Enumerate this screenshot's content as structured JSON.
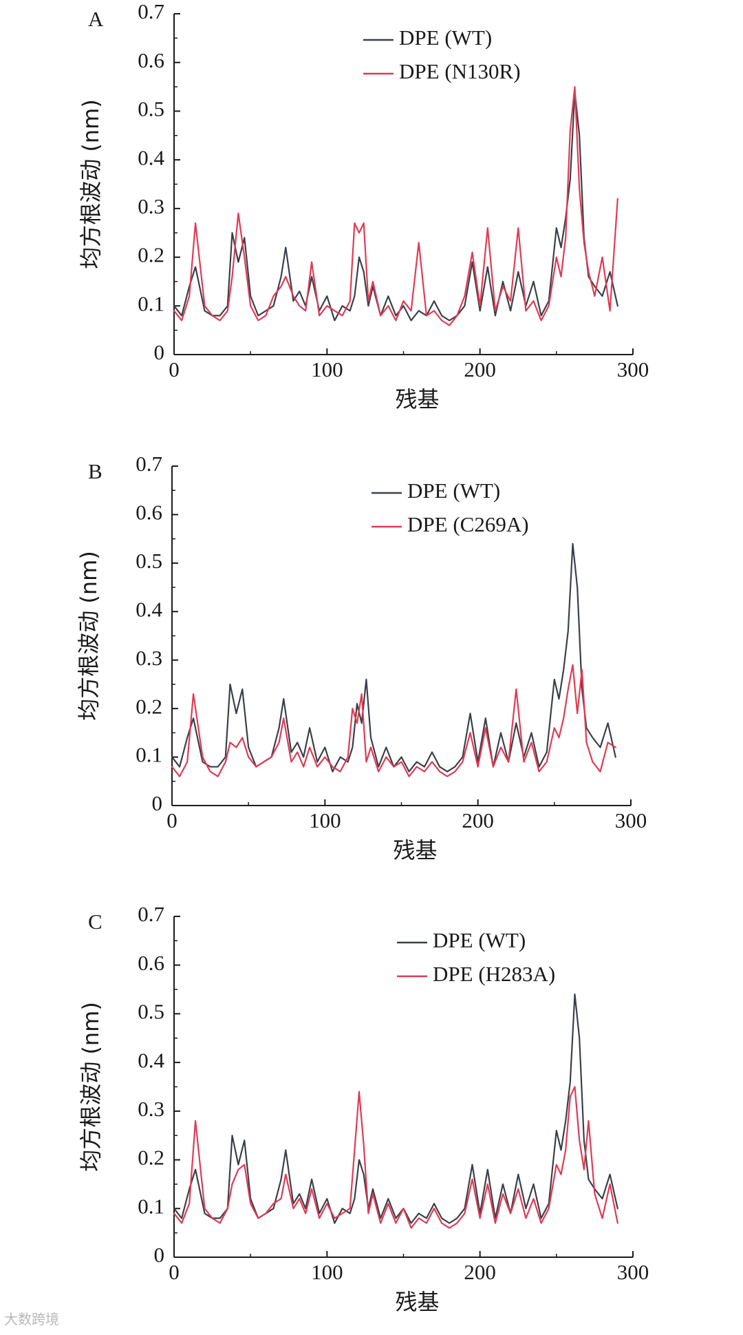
{
  "colors": {
    "wt": "#3a4048",
    "mut": "#e03a55",
    "axis": "#1a1a1a"
  },
  "watermark": "大数跨境",
  "chart_data": [
    {
      "type": "line",
      "panel": "A",
      "xlabel": "残基",
      "ylabel": "均方根波动 (nm)",
      "xlim": [
        0,
        300
      ],
      "ylim": [
        0,
        0.7
      ],
      "xticks": [
        "0",
        "100",
        "200",
        "300"
      ],
      "yticks": [
        "0",
        "0.1",
        "0.2",
        "0.3",
        "0.4",
        "0.5",
        "0.6",
        "0.7"
      ],
      "legend_position": "top-right",
      "series": [
        {
          "name": "DPE (WT)",
          "key": "wt"
        },
        {
          "name": "DPE (N130R)",
          "key": "mut"
        }
      ],
      "points": {
        "x": [
          0,
          5,
          10,
          14,
          20,
          25,
          30,
          35,
          38,
          42,
          46,
          50,
          55,
          60,
          65,
          70,
          73,
          78,
          82,
          86,
          90,
          95,
          100,
          105,
          110,
          115,
          118,
          121,
          124,
          127,
          130,
          135,
          140,
          145,
          150,
          155,
          160,
          165,
          170,
          175,
          180,
          185,
          190,
          195,
          200,
          205,
          210,
          215,
          220,
          225,
          230,
          235,
          240,
          245,
          250,
          253,
          256,
          259,
          262,
          265,
          268,
          271,
          275,
          280,
          285,
          290
        ],
        "wt": [
          0.1,
          0.08,
          0.14,
          0.18,
          0.09,
          0.08,
          0.08,
          0.1,
          0.25,
          0.19,
          0.24,
          0.12,
          0.08,
          0.09,
          0.1,
          0.16,
          0.22,
          0.11,
          0.13,
          0.1,
          0.16,
          0.09,
          0.12,
          0.07,
          0.1,
          0.09,
          0.12,
          0.2,
          0.17,
          0.1,
          0.14,
          0.08,
          0.12,
          0.08,
          0.1,
          0.07,
          0.09,
          0.08,
          0.11,
          0.08,
          0.07,
          0.08,
          0.1,
          0.19,
          0.09,
          0.18,
          0.08,
          0.15,
          0.09,
          0.17,
          0.1,
          0.15,
          0.08,
          0.11,
          0.26,
          0.22,
          0.28,
          0.36,
          0.54,
          0.45,
          0.24,
          0.16,
          0.14,
          0.12,
          0.17,
          0.1
        ],
        "mut": [
          0.09,
          0.07,
          0.12,
          0.27,
          0.1,
          0.08,
          0.07,
          0.09,
          0.16,
          0.29,
          0.2,
          0.1,
          0.07,
          0.08,
          0.12,
          0.14,
          0.16,
          0.12,
          0.1,
          0.09,
          0.19,
          0.08,
          0.1,
          0.09,
          0.08,
          0.11,
          0.27,
          0.25,
          0.27,
          0.11,
          0.15,
          0.08,
          0.1,
          0.07,
          0.11,
          0.09,
          0.23,
          0.08,
          0.09,
          0.07,
          0.06,
          0.08,
          0.12,
          0.21,
          0.1,
          0.26,
          0.09,
          0.14,
          0.11,
          0.26,
          0.09,
          0.11,
          0.07,
          0.1,
          0.2,
          0.16,
          0.24,
          0.46,
          0.55,
          0.34,
          0.23,
          0.17,
          0.12,
          0.2,
          0.09,
          0.32
        ]
      }
    },
    {
      "type": "line",
      "panel": "B",
      "xlabel": "残基",
      "ylabel": "均方根波动 (nm)",
      "xlim": [
        0,
        300
      ],
      "ylim": [
        0,
        0.7
      ],
      "xticks": [
        "0",
        "100",
        "200",
        "300"
      ],
      "yticks": [
        "0",
        "0.1",
        "0.2",
        "0.3",
        "0.4",
        "0.5",
        "0.6",
        "0.7"
      ],
      "legend_position": "top-right",
      "series": [
        {
          "name": "DPE (WT)",
          "key": "wt"
        },
        {
          "name": "DPE (C269A)",
          "key": "mut"
        }
      ],
      "points": {
        "x": [
          0,
          5,
          10,
          14,
          20,
          25,
          30,
          35,
          38,
          42,
          46,
          50,
          55,
          60,
          65,
          70,
          73,
          78,
          82,
          86,
          90,
          95,
          100,
          105,
          110,
          115,
          118,
          121,
          124,
          127,
          130,
          135,
          140,
          145,
          150,
          155,
          160,
          165,
          170,
          175,
          180,
          185,
          190,
          195,
          200,
          205,
          210,
          215,
          220,
          225,
          230,
          235,
          240,
          245,
          250,
          253,
          256,
          259,
          262,
          265,
          268,
          271,
          275,
          280,
          285,
          290
        ],
        "wt": [
          0.1,
          0.08,
          0.14,
          0.18,
          0.09,
          0.08,
          0.08,
          0.1,
          0.25,
          0.19,
          0.24,
          0.12,
          0.08,
          0.09,
          0.1,
          0.16,
          0.22,
          0.11,
          0.13,
          0.1,
          0.16,
          0.09,
          0.12,
          0.07,
          0.1,
          0.09,
          0.12,
          0.21,
          0.17,
          0.26,
          0.14,
          0.08,
          0.12,
          0.08,
          0.1,
          0.07,
          0.09,
          0.08,
          0.11,
          0.08,
          0.07,
          0.08,
          0.1,
          0.19,
          0.09,
          0.18,
          0.08,
          0.15,
          0.09,
          0.17,
          0.1,
          0.15,
          0.08,
          0.11,
          0.26,
          0.22,
          0.28,
          0.36,
          0.54,
          0.45,
          0.24,
          0.16,
          0.14,
          0.12,
          0.17,
          0.1
        ],
        "mut": [
          0.08,
          0.06,
          0.09,
          0.23,
          0.1,
          0.07,
          0.06,
          0.09,
          0.13,
          0.12,
          0.14,
          0.1,
          0.08,
          0.09,
          0.1,
          0.13,
          0.18,
          0.09,
          0.11,
          0.08,
          0.12,
          0.08,
          0.1,
          0.08,
          0.07,
          0.1,
          0.2,
          0.17,
          0.23,
          0.09,
          0.12,
          0.07,
          0.1,
          0.08,
          0.09,
          0.06,
          0.08,
          0.07,
          0.09,
          0.07,
          0.06,
          0.07,
          0.09,
          0.15,
          0.08,
          0.16,
          0.08,
          0.12,
          0.09,
          0.24,
          0.09,
          0.13,
          0.07,
          0.09,
          0.16,
          0.14,
          0.18,
          0.24,
          0.29,
          0.19,
          0.28,
          0.13,
          0.09,
          0.07,
          0.13,
          0.12
        ]
      }
    },
    {
      "type": "line",
      "panel": "C",
      "xlabel": "残基",
      "ylabel": "均方根波动 (nm)",
      "xlim": [
        0,
        300
      ],
      "ylim": [
        0,
        0.7
      ],
      "xticks": [
        "0",
        "100",
        "200",
        "300"
      ],
      "yticks": [
        "0",
        "0.1",
        "0.2",
        "0.3",
        "0.4",
        "0.5",
        "0.6",
        "0.7"
      ],
      "legend_position": "top-right",
      "series": [
        {
          "name": "DPE (WT)",
          "key": "wt"
        },
        {
          "name": "DPE (H283A)",
          "key": "mut"
        }
      ],
      "points": {
        "x": [
          0,
          5,
          10,
          14,
          20,
          25,
          30,
          35,
          38,
          42,
          46,
          50,
          55,
          60,
          65,
          70,
          73,
          78,
          82,
          86,
          90,
          95,
          100,
          105,
          110,
          115,
          118,
          121,
          124,
          127,
          130,
          135,
          140,
          145,
          150,
          155,
          160,
          165,
          170,
          175,
          180,
          185,
          190,
          195,
          200,
          205,
          210,
          215,
          220,
          225,
          230,
          235,
          240,
          245,
          250,
          253,
          256,
          259,
          262,
          265,
          268,
          271,
          275,
          280,
          285,
          290
        ],
        "wt": [
          0.1,
          0.08,
          0.14,
          0.18,
          0.09,
          0.08,
          0.08,
          0.1,
          0.25,
          0.19,
          0.24,
          0.12,
          0.08,
          0.09,
          0.1,
          0.16,
          0.22,
          0.11,
          0.13,
          0.1,
          0.16,
          0.09,
          0.12,
          0.07,
          0.1,
          0.09,
          0.12,
          0.2,
          0.17,
          0.1,
          0.14,
          0.08,
          0.12,
          0.08,
          0.1,
          0.07,
          0.09,
          0.08,
          0.11,
          0.08,
          0.07,
          0.08,
          0.1,
          0.19,
          0.09,
          0.18,
          0.08,
          0.15,
          0.09,
          0.17,
          0.1,
          0.15,
          0.08,
          0.11,
          0.26,
          0.22,
          0.28,
          0.36,
          0.54,
          0.45,
          0.24,
          0.16,
          0.14,
          0.12,
          0.17,
          0.1
        ],
        "mut": [
          0.09,
          0.07,
          0.11,
          0.28,
          0.1,
          0.08,
          0.07,
          0.1,
          0.15,
          0.18,
          0.19,
          0.11,
          0.08,
          0.09,
          0.11,
          0.12,
          0.17,
          0.1,
          0.12,
          0.09,
          0.14,
          0.08,
          0.11,
          0.08,
          0.09,
          0.1,
          0.22,
          0.34,
          0.23,
          0.09,
          0.13,
          0.07,
          0.11,
          0.07,
          0.1,
          0.06,
          0.08,
          0.07,
          0.1,
          0.07,
          0.06,
          0.07,
          0.09,
          0.16,
          0.08,
          0.15,
          0.07,
          0.13,
          0.09,
          0.14,
          0.08,
          0.12,
          0.07,
          0.1,
          0.19,
          0.17,
          0.22,
          0.33,
          0.35,
          0.24,
          0.18,
          0.28,
          0.13,
          0.08,
          0.15,
          0.07
        ]
      }
    }
  ]
}
